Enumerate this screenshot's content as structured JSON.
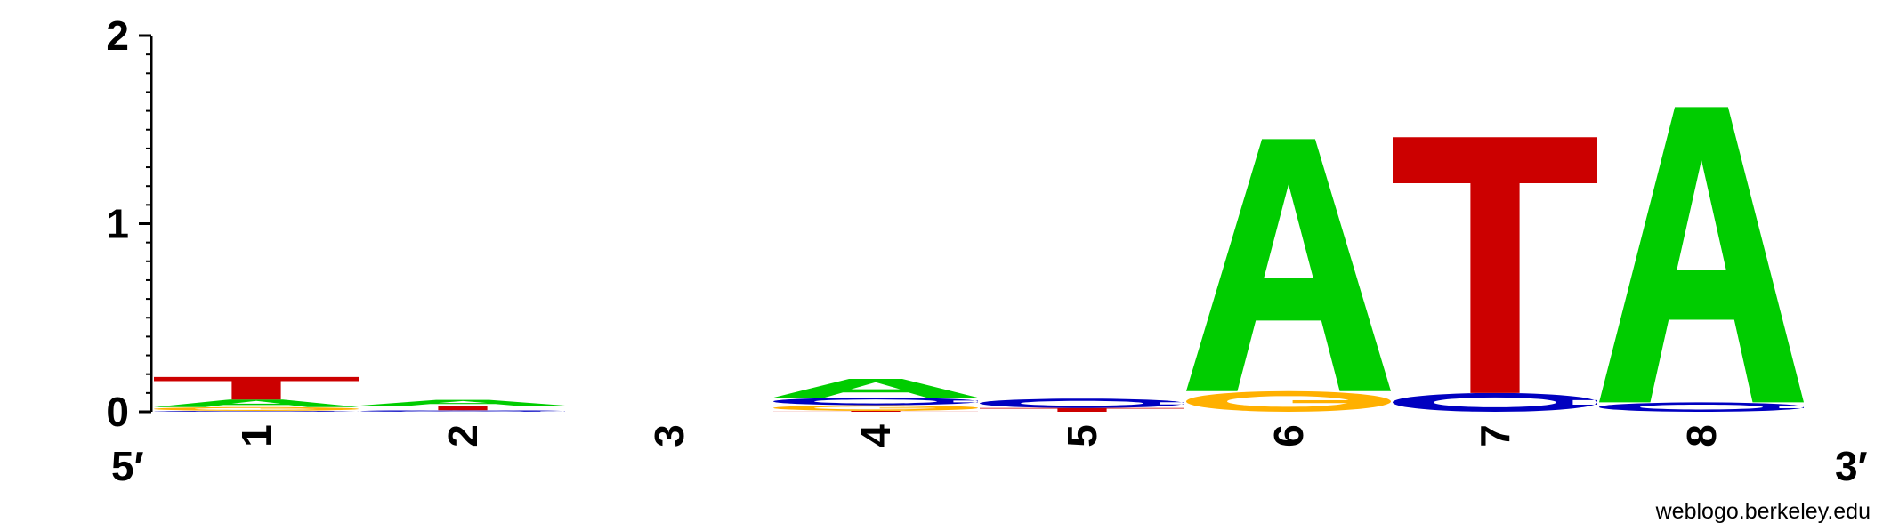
{
  "chart_data": {
    "type": "sequence-logo",
    "ylim": [
      0,
      2
    ],
    "y_ticks": [
      "0",
      "1",
      "2"
    ],
    "positions": [
      "1",
      "2",
      "3",
      "4",
      "5",
      "6",
      "7",
      "8"
    ],
    "end_labels": {
      "left": "5′",
      "right": "3′"
    },
    "credit": "weblogo.berkeley.edu",
    "colors": {
      "A": "#00cc00",
      "C": "#0000c0",
      "G": "#ffb000",
      "T": "#cc0000"
    },
    "stacks": [
      {
        "position": "1",
        "letters": [
          {
            "base": "C",
            "height": 0.005
          },
          {
            "base": "G",
            "height": 0.02
          },
          {
            "base": "A",
            "height": 0.04
          },
          {
            "base": "T",
            "height": 0.12
          }
        ]
      },
      {
        "position": "2",
        "letters": [
          {
            "base": "C",
            "height": 0.008
          },
          {
            "base": "T",
            "height": 0.025
          },
          {
            "base": "A",
            "height": 0.03
          }
        ]
      },
      {
        "position": "3",
        "letters": []
      },
      {
        "position": "4",
        "letters": [
          {
            "base": "T",
            "height": 0.005
          },
          {
            "base": "G",
            "height": 0.03
          },
          {
            "base": "C",
            "height": 0.04
          },
          {
            "base": "A",
            "height": 0.1
          }
        ]
      },
      {
        "position": "5",
        "letters": [
          {
            "base": "T",
            "height": 0.02
          },
          {
            "base": "C",
            "height": 0.05
          }
        ]
      },
      {
        "position": "6",
        "letters": [
          {
            "base": "G",
            "height": 0.11
          },
          {
            "base": "A",
            "height": 1.34
          }
        ]
      },
      {
        "position": "7",
        "letters": [
          {
            "base": "C",
            "height": 0.1
          },
          {
            "base": "T",
            "height": 1.36
          }
        ]
      },
      {
        "position": "8",
        "letters": [
          {
            "base": "C",
            "height": 0.05
          },
          {
            "base": "A",
            "height": 1.57
          }
        ]
      }
    ]
  }
}
